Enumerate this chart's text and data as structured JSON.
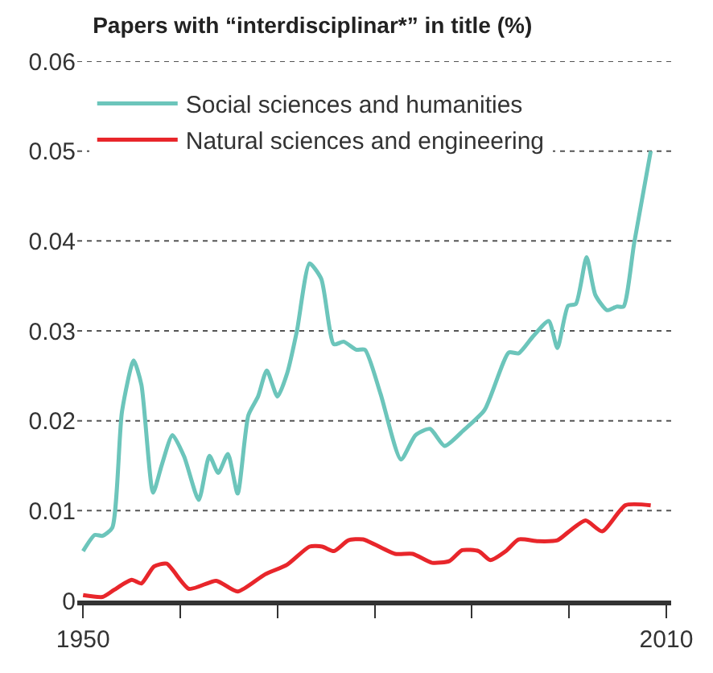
{
  "chart_data": {
    "type": "line",
    "title": "Papers with “interdisciplinar*” in title (%)",
    "xlim": [
      1949.4,
      2010.5
    ],
    "xticks": [
      1950,
      {
        "value": 1960,
        "label": null
      },
      {
        "value": 1970,
        "label": null
      },
      {
        "value": 1980,
        "label": null
      },
      {
        "value": 1990,
        "label": null
      },
      {
        "value": 2000,
        "label": null
      },
      2010
    ],
    "ylim": [
      0,
      0.06
    ],
    "yticks": [
      0,
      0.01,
      0.02,
      0.03,
      0.04,
      0.05,
      0.06
    ],
    "grid": "y",
    "legend": "top left",
    "line_style": "solid",
    "marker": "none",
    "series": [
      {
        "name": "Social sciences and humanities",
        "color": "#6cc5bb",
        "x": [
          1950,
          1951.2,
          1952,
          1953,
          1954,
          1955.2,
          1956,
          1957.2,
          1958.1,
          1959.2,
          1960.4,
          1961.9,
          1963,
          1963.9,
          1964.9,
          1965.9,
          1967,
          1968,
          1968.9,
          1970,
          1971,
          1972,
          1973.3,
          1974.5,
          1975.8,
          1976.8,
          1978.1,
          1979,
          1980.6,
          1982.7,
          1984.2,
          1985.7,
          1987.2,
          1989.2,
          1991.3,
          1993.8,
          1994.8,
          1996.3,
          1997.9,
          1998.8,
          1999.9,
          2000.7,
          2001.8,
          2002.7,
          2003.9,
          2004.9,
          2005.6,
          2006.7,
          2008.4
        ],
        "values": [
          0.0055,
          0.0073,
          0.0072,
          0.0081,
          0.021,
          0.0267,
          0.024,
          0.012,
          0.0151,
          0.0184,
          0.016,
          0.0112,
          0.0161,
          0.0142,
          0.0163,
          0.0119,
          0.0206,
          0.0227,
          0.0256,
          0.0227,
          0.0253,
          0.03,
          0.0375,
          0.0358,
          0.0285,
          0.0288,
          0.0279,
          0.0279,
          0.023,
          0.0157,
          0.0184,
          0.0191,
          0.0172,
          0.019,
          0.0212,
          0.0276,
          0.0275,
          0.0294,
          0.0311,
          0.0281,
          0.0328,
          0.033,
          0.0382,
          0.034,
          0.0323,
          0.0327,
          0.0327,
          0.0398,
          0.05
        ]
      },
      {
        "name": "Natural sciences and engineering",
        "color": "#e8262b",
        "x": [
          1950,
          1952,
          1953.2,
          1955,
          1956,
          1957.3,
          1958.6,
          1960.9,
          1963.7,
          1965.9,
          1968.7,
          1971,
          1973.3,
          1974.6,
          1975.8,
          1977.3,
          1978.8,
          1982.1,
          1983.9,
          1985.9,
          1987.7,
          1989,
          1990.7,
          1991.9,
          1993.5,
          1994.8,
          1996.8,
          1998.8,
          1999.9,
          2001.7,
          2003.4,
          2005.8,
          2008.4
        ],
        "values": [
          0.0006,
          0.0004,
          0.0012,
          0.0023,
          0.0019,
          0.0038,
          0.0041,
          0.0013,
          0.0022,
          0.001,
          0.0029,
          0.004,
          0.006,
          0.006,
          0.0055,
          0.0067,
          0.0068,
          0.0052,
          0.0052,
          0.0042,
          0.0044,
          0.0056,
          0.0055,
          0.0045,
          0.0055,
          0.0068,
          0.0066,
          0.0067,
          0.0076,
          0.0089,
          0.0077,
          0.0106,
          0.0106
        ]
      }
    ]
  }
}
